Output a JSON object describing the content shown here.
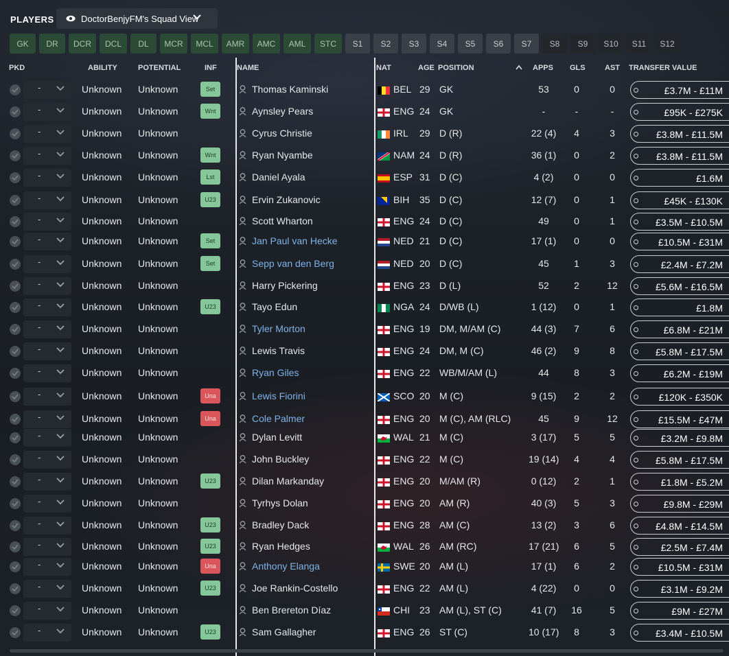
{
  "header": {
    "title": "PLAYERS",
    "view_selector": "DoctorBenjyFM's Squad View"
  },
  "position_filters": [
    {
      "label": "GK",
      "style": "g"
    },
    {
      "label": "DR",
      "style": "g"
    },
    {
      "label": "DCR",
      "style": "g"
    },
    {
      "label": "DCL",
      "style": "g"
    },
    {
      "label": "DL",
      "style": "g"
    },
    {
      "label": "MCR",
      "style": "g"
    },
    {
      "label": "MCL",
      "style": "g"
    },
    {
      "label": "AMR",
      "style": "g"
    },
    {
      "label": "AMC",
      "style": "g"
    },
    {
      "label": "AML",
      "style": "g"
    },
    {
      "label": "STC",
      "style": "g"
    },
    {
      "label": "S1",
      "style": "s"
    },
    {
      "label": "S2",
      "style": "s"
    },
    {
      "label": "S3",
      "style": "s"
    },
    {
      "label": "S4",
      "style": "s"
    },
    {
      "label": "S5",
      "style": "s"
    },
    {
      "label": "S6",
      "style": "s"
    },
    {
      "label": "S7",
      "style": "s"
    },
    {
      "label": "S8",
      "style": "d"
    },
    {
      "label": "S9",
      "style": "d"
    },
    {
      "label": "S10",
      "style": "d"
    },
    {
      "label": "S11",
      "style": "d"
    },
    {
      "label": "S12",
      "style": "d"
    }
  ],
  "columns": {
    "pkd": "PKD",
    "ability": "ABILITY",
    "potential": "POTENTIAL",
    "inf": "INF",
    "name": "NAME",
    "nat": "NAT",
    "age": "AGE",
    "position": "POSITION",
    "apps": "APPS",
    "gls": "GLS",
    "ast": "AST",
    "transfer_value": "TRANSFER VALUE"
  },
  "colors": {
    "green_badge": "#86c79a",
    "red_badge": "#d9575a",
    "link_name": "#7fb3e8"
  },
  "players": [
    {
      "pkd": "-",
      "ability": "Unknown",
      "potential": "Unknown",
      "inf": "Set",
      "inf_color": "g",
      "name": "Thomas Kaminski",
      "link": false,
      "nat": "BEL",
      "flag": "bel",
      "age": "29",
      "position": "GK",
      "apps": "53",
      "gls": "0",
      "ast": "0",
      "value": "£3.7M - £11M"
    },
    {
      "pkd": "-",
      "ability": "Unknown",
      "potential": "Unknown",
      "inf": "Wnt",
      "inf_color": "g",
      "name": "Aynsley Pears",
      "link": false,
      "nat": "ENG",
      "flag": "eng",
      "age": "24",
      "position": "GK",
      "apps": "-",
      "gls": "-",
      "ast": "-",
      "value": "£95K - £275K"
    },
    {
      "pkd": "-",
      "ability": "Unknown",
      "potential": "Unknown",
      "inf": "",
      "inf_color": "",
      "name": "Cyrus Christie",
      "link": false,
      "nat": "IRL",
      "flag": "irl",
      "age": "29",
      "position": "D (R)",
      "apps": "22 (4)",
      "gls": "4",
      "ast": "3",
      "value": "£3.8M - £11.5M"
    },
    {
      "pkd": "-",
      "ability": "Unknown",
      "potential": "Unknown",
      "inf": "Wnt",
      "inf_color": "g",
      "name": "Ryan Nyambe",
      "link": false,
      "nat": "NAM",
      "flag": "nam",
      "age": "24",
      "position": "D (R)",
      "apps": "36 (1)",
      "gls": "0",
      "ast": "2",
      "value": "£3.8M - £11.5M"
    },
    {
      "pkd": "-",
      "ability": "Unknown",
      "potential": "Unknown",
      "inf": "Lst",
      "inf_color": "g",
      "name": "Daniel Ayala",
      "link": false,
      "nat": "ESP",
      "flag": "esp",
      "age": "31",
      "position": "D (C)",
      "apps": "4 (2)",
      "gls": "0",
      "ast": "0",
      "value": "£1.6M"
    },
    {
      "pkd": "-",
      "ability": "Unknown",
      "potential": "Unknown",
      "inf": "U23",
      "inf_color": "g",
      "name": "Ervin Zukanovic",
      "link": false,
      "nat": "BIH",
      "flag": "bih",
      "age": "35",
      "position": "D (C)",
      "apps": "12 (7)",
      "gls": "0",
      "ast": "1",
      "value": "£45K - £130K"
    },
    {
      "pkd": "-",
      "ability": "Unknown",
      "potential": "Unknown",
      "inf": "",
      "inf_color": "",
      "name": "Scott Wharton",
      "link": false,
      "nat": "ENG",
      "flag": "eng",
      "age": "24",
      "position": "D (C)",
      "apps": "49",
      "gls": "0",
      "ast": "1",
      "value": "£3.5M - £10.5M"
    },
    {
      "pkd": "-",
      "ability": "Unknown",
      "potential": "Unknown",
      "inf": "Set",
      "inf_color": "g",
      "name": "Jan Paul van Hecke",
      "link": true,
      "nat": "NED",
      "flag": "ned",
      "age": "21",
      "position": "D (C)",
      "apps": "17 (1)",
      "gls": "0",
      "ast": "0",
      "value": "£10.5M - £31M"
    },
    {
      "pkd": "-",
      "ability": "Unknown",
      "potential": "Unknown",
      "inf": "Set",
      "inf_color": "g",
      "name": "Sepp van den Berg",
      "link": true,
      "nat": "NED",
      "flag": "ned",
      "age": "20",
      "position": "D (C)",
      "apps": "45",
      "gls": "1",
      "ast": "3",
      "value": "£2.4M - £7.2M"
    },
    {
      "pkd": "-",
      "ability": "Unknown",
      "potential": "Unknown",
      "inf": "",
      "inf_color": "",
      "name": "Harry Pickering",
      "link": false,
      "nat": "ENG",
      "flag": "eng",
      "age": "23",
      "position": "D (L)",
      "apps": "52",
      "gls": "2",
      "ast": "12",
      "value": "£5.6M - £16.5M"
    },
    {
      "pkd": "-",
      "ability": "Unknown",
      "potential": "Unknown",
      "inf": "U23",
      "inf_color": "g",
      "name": "Tayo Edun",
      "link": false,
      "nat": "NGA",
      "flag": "nga",
      "age": "24",
      "position": "D/WB (L)",
      "apps": "1 (12)",
      "gls": "0",
      "ast": "1",
      "value": "£1.8M"
    },
    {
      "pkd": "-",
      "ability": "Unknown",
      "potential": "Unknown",
      "inf": "",
      "inf_color": "",
      "name": "Tyler Morton",
      "link": true,
      "nat": "ENG",
      "flag": "eng",
      "age": "19",
      "position": "DM, M/AM (C)",
      "apps": "44 (3)",
      "gls": "7",
      "ast": "6",
      "value": "£6.8M - £21M"
    },
    {
      "pkd": "-",
      "ability": "Unknown",
      "potential": "Unknown",
      "inf": "",
      "inf_color": "",
      "name": "Lewis Travis",
      "link": false,
      "nat": "ENG",
      "flag": "eng",
      "age": "24",
      "position": "DM, M (C)",
      "apps": "46 (2)",
      "gls": "9",
      "ast": "8",
      "value": "£5.8M - £17.5M"
    },
    {
      "pkd": "-",
      "ability": "Unknown",
      "potential": "Unknown",
      "inf": "",
      "inf_color": "",
      "name": "Ryan Giles",
      "link": true,
      "nat": "ENG",
      "flag": "eng",
      "age": "22",
      "position": "WB/M/AM (L)",
      "apps": "44",
      "gls": "8",
      "ast": "3",
      "value": "£6.2M - £19M"
    },
    {
      "pkd": "-",
      "ability": "Unknown",
      "potential": "Unknown",
      "inf": "Una",
      "inf_color": "r",
      "name": "Lewis Fiorini",
      "link": true,
      "nat": "SCO",
      "flag": "sco",
      "age": "20",
      "position": "M (C)",
      "apps": "9 (15)",
      "gls": "2",
      "ast": "2",
      "value": "£120K - £350K"
    },
    {
      "pkd": "-",
      "ability": "Unknown",
      "potential": "Unknown",
      "inf": "Una",
      "inf_color": "r",
      "name": "Cole Palmer",
      "link": true,
      "nat": "ENG",
      "flag": "eng",
      "age": "20",
      "position": "M (C), AM (RLC)",
      "apps": "45",
      "gls": "9",
      "ast": "12",
      "value": "£15.5M - £47M"
    },
    {
      "pkd": "-",
      "ability": "Unknown",
      "potential": "Unknown",
      "inf": "",
      "inf_color": "",
      "name": "Dylan Levitt",
      "link": false,
      "nat": "WAL",
      "flag": "wal",
      "age": "21",
      "position": "M (C)",
      "apps": "3 (17)",
      "gls": "5",
      "ast": "5",
      "value": "£3.2M - £9.8M"
    },
    {
      "pkd": "-",
      "ability": "Unknown",
      "potential": "Unknown",
      "inf": "",
      "inf_color": "",
      "name": "John Buckley",
      "link": false,
      "nat": "ENG",
      "flag": "eng",
      "age": "22",
      "position": "M (C)",
      "apps": "19 (14)",
      "gls": "4",
      "ast": "4",
      "value": "£5.8M - £17.5M"
    },
    {
      "pkd": "-",
      "ability": "Unknown",
      "potential": "Unknown",
      "inf": "U23",
      "inf_color": "g",
      "name": "Dilan Markanday",
      "link": false,
      "nat": "ENG",
      "flag": "eng",
      "age": "20",
      "position": "M/AM (R)",
      "apps": "0 (12)",
      "gls": "2",
      "ast": "1",
      "value": "£1.8M - £5.2M"
    },
    {
      "pkd": "-",
      "ability": "Unknown",
      "potential": "Unknown",
      "inf": "",
      "inf_color": "",
      "name": "Tyrhys Dolan",
      "link": false,
      "nat": "ENG",
      "flag": "eng",
      "age": "20",
      "position": "AM (R)",
      "apps": "40 (3)",
      "gls": "5",
      "ast": "3",
      "value": "£9.8M - £29M"
    },
    {
      "pkd": "-",
      "ability": "Unknown",
      "potential": "Unknown",
      "inf": "U23",
      "inf_color": "g",
      "name": "Bradley Dack",
      "link": false,
      "nat": "ENG",
      "flag": "eng",
      "age": "28",
      "position": "AM (C)",
      "apps": "13 (2)",
      "gls": "3",
      "ast": "6",
      "value": "£4.8M - £14.5M"
    },
    {
      "pkd": "-",
      "ability": "Unknown",
      "potential": "Unknown",
      "inf": "U23",
      "inf_color": "g",
      "name": "Ryan Hedges",
      "link": false,
      "nat": "WAL",
      "flag": "wal",
      "age": "26",
      "position": "AM (RC)",
      "apps": "17 (21)",
      "gls": "6",
      "ast": "5",
      "value": "£2.5M - £7.4M"
    },
    {
      "pkd": "-",
      "ability": "Unknown",
      "potential": "Unknown",
      "inf": "Una",
      "inf_color": "r",
      "name": "Anthony Elanga",
      "link": true,
      "nat": "SWE",
      "flag": "swe",
      "age": "20",
      "position": "AM (L)",
      "apps": "17 (1)",
      "gls": "6",
      "ast": "2",
      "value": "£10.5M - £31M"
    },
    {
      "pkd": "-",
      "ability": "Unknown",
      "potential": "Unknown",
      "inf": "U23",
      "inf_color": "g",
      "name": "Joe Rankin-Costello",
      "link": false,
      "nat": "ENG",
      "flag": "eng",
      "age": "22",
      "position": "AM (L)",
      "apps": "4 (22)",
      "gls": "0",
      "ast": "0",
      "value": "£3.1M - £9.2M"
    },
    {
      "pkd": "-",
      "ability": "Unknown",
      "potential": "Unknown",
      "inf": "",
      "inf_color": "",
      "name": "Ben Brereton Díaz",
      "link": false,
      "nat": "CHI",
      "flag": "chi",
      "age": "23",
      "position": "AM (L), ST (C)",
      "apps": "41 (7)",
      "gls": "16",
      "ast": "5",
      "value": "£9M - £27M"
    },
    {
      "pkd": "-",
      "ability": "Unknown",
      "potential": "Unknown",
      "inf": "U23",
      "inf_color": "g",
      "name": "Sam Gallagher",
      "link": false,
      "nat": "ENG",
      "flag": "eng",
      "age": "26",
      "position": "ST (C)",
      "apps": "10 (17)",
      "gls": "8",
      "ast": "3",
      "value": "£3.4M - £10.5M"
    }
  ]
}
